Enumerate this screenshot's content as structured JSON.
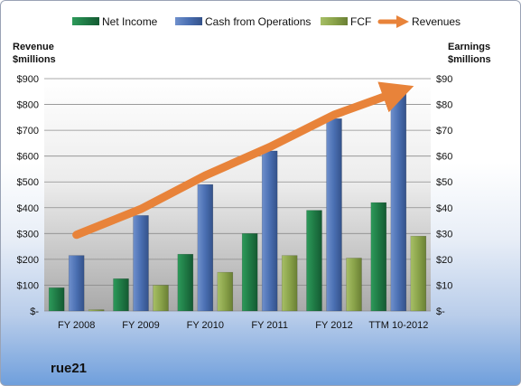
{
  "colors": {
    "net_income": "#1f7a45",
    "cash_from_operations": "#4a6fb2",
    "fcf": "#8aa34a",
    "revenues": "#e8833a"
  },
  "company": "rue21",
  "chart_data": {
    "type": "bar",
    "categories": [
      "FY 2008",
      "FY 2009",
      "FY 2010",
      "FY 2011",
      "FY 2012",
      "TTM 10-2012"
    ],
    "series": [
      {
        "name": "Net Income",
        "axis": "right",
        "kind": "bar",
        "values": [
          9,
          12.5,
          22,
          30,
          39,
          42
        ]
      },
      {
        "name": "Cash from Operations",
        "axis": "right",
        "kind": "bar",
        "values": [
          21.5,
          37,
          49,
          62,
          74.5,
          85
        ]
      },
      {
        "name": "FCF",
        "axis": "right",
        "kind": "bar",
        "values": [
          0.5,
          10,
          15,
          21.5,
          20.5,
          29
        ]
      },
      {
        "name": "Revenues",
        "axis": "left",
        "kind": "line",
        "values": [
          295,
          395,
          525,
          635,
          760,
          850
        ]
      }
    ],
    "left_axis": {
      "title_line1": "Revenue",
      "title_line2": "$millions",
      "min": 0,
      "max": 900,
      "step": 100,
      "tick_labels": [
        "$-",
        "$100",
        "$200",
        "$300",
        "$400",
        "$500",
        "$600",
        "$700",
        "$800",
        "$900"
      ]
    },
    "right_axis": {
      "title_line1": "Earnings",
      "title_line2": "$millions",
      "min": 0,
      "max": 90,
      "step": 10,
      "tick_labels": [
        "$-",
        "$10",
        "$20",
        "$30",
        "$40",
        "$50",
        "$60",
        "$70",
        "$80",
        "$90"
      ]
    },
    "legend_position": "top",
    "grid": true
  }
}
